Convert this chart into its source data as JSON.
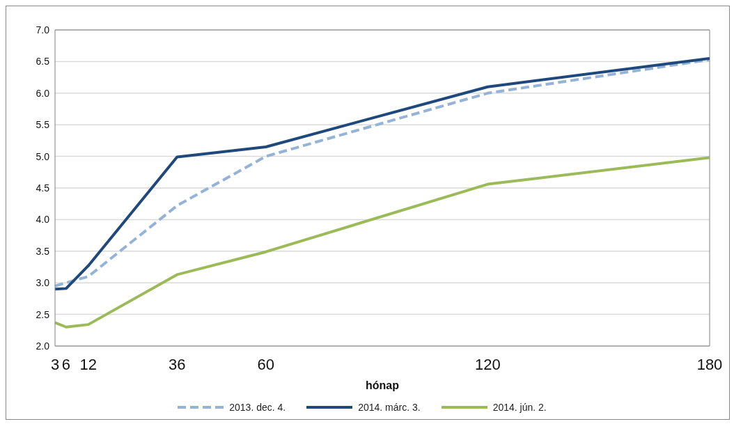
{
  "chart_data": {
    "type": "line",
    "xlabel": "hónap",
    "x": [
      3,
      6,
      12,
      36,
      60,
      120,
      180
    ],
    "series": [
      {
        "name": "2013. dec. 4.",
        "color": "#95b3d7",
        "line_style": "dashed",
        "values": [
          2.95,
          3.0,
          3.1,
          4.22,
          5.0,
          6.0,
          6.53
        ]
      },
      {
        "name": "2014. márc. 3.",
        "color": "#1f497d",
        "line_style": "solid",
        "values": [
          2.9,
          2.91,
          3.27,
          4.99,
          5.15,
          6.1,
          6.55
        ]
      },
      {
        "name": "2014. jún. 2.",
        "color": "#9bbb59",
        "line_style": "solid",
        "values": [
          2.37,
          2.3,
          2.34,
          3.13,
          3.49,
          4.56,
          4.98
        ]
      }
    ],
    "xlim": [
      3,
      180
    ],
    "xticks": [
      3,
      6,
      12,
      36,
      60,
      120,
      180
    ],
    "ylim": [
      2,
      7
    ],
    "yticks": [
      {
        "value": 2,
        "label": "2.0"
      },
      {
        "value": 2.5,
        "label": "2.5"
      },
      {
        "value": 3,
        "label": "3.0"
      },
      {
        "value": 3.5,
        "label": "3.5"
      },
      {
        "value": 4,
        "label": "4.0"
      },
      {
        "value": 4.5,
        "label": "4.5"
      },
      {
        "value": 5,
        "label": "5.0"
      },
      {
        "value": 5.5,
        "label": "5.5"
      },
      {
        "value": 6,
        "label": "6.0"
      },
      {
        "value": 6.5,
        "label": "6.5"
      },
      {
        "value": 7,
        "label": "7.0"
      }
    ],
    "grid": "y",
    "legend": "bottom",
    "marker": "none"
  }
}
